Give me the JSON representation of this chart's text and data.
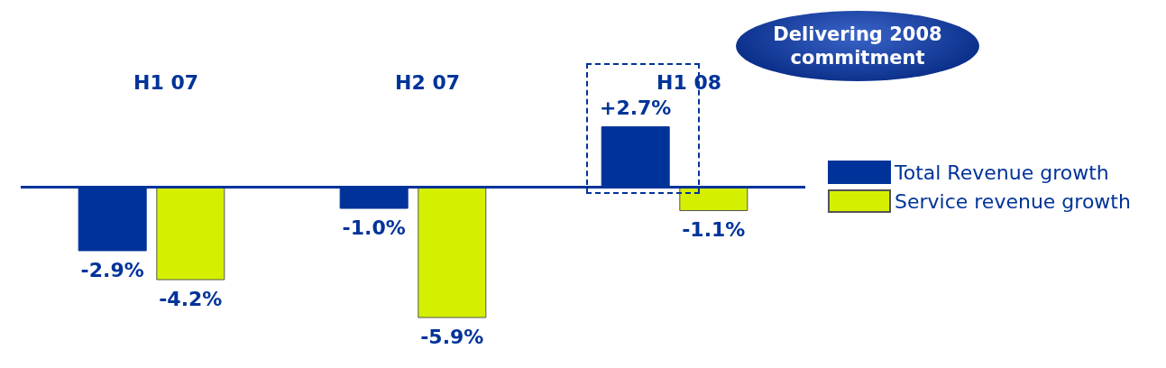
{
  "chart_data": {
    "type": "bar",
    "categories": [
      "H1 07",
      "H2 07",
      "H1 08"
    ],
    "series": [
      {
        "name": "Total Revenue growth",
        "color": "#003399",
        "values": [
          -2.9,
          -1.0,
          2.7
        ],
        "value_labels": [
          "-2.9%",
          "-1.0%",
          "+2.7%"
        ]
      },
      {
        "name": "Service revenue growth",
        "color": "#d4f000",
        "values": [
          -4.2,
          -5.9,
          -1.1
        ],
        "value_labels": [
          "-4.2%",
          "-5.9%",
          "-1.1%"
        ]
      }
    ],
    "ref_lines": [
      {
        "axis": "y",
        "value": 0,
        "color": "#003399"
      }
    ],
    "legend": "right",
    "grid": false,
    "annotations": [
      "Delivering 2008 commitment"
    ]
  }
}
